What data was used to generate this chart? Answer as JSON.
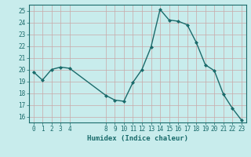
{
  "x": [
    0,
    1,
    2,
    3,
    4,
    8,
    9,
    10,
    11,
    12,
    13,
    14,
    15,
    16,
    17,
    18,
    19,
    20,
    21,
    22,
    23
  ],
  "y": [
    19.8,
    19.1,
    20.0,
    20.2,
    20.1,
    17.8,
    17.4,
    17.3,
    18.9,
    20.0,
    21.9,
    25.1,
    24.2,
    24.1,
    23.8,
    22.3,
    20.4,
    19.9,
    17.9,
    16.7,
    15.7
  ],
  "line_color": "#1a6b6b",
  "marker": "D",
  "marker_size": 2.0,
  "bg_color": "#c8ecec",
  "grid_color": "#c8a8a8",
  "xlabel": "Humidex (Indice chaleur)",
  "ylim": [
    15.5,
    25.5
  ],
  "xlim": [
    -0.5,
    23.5
  ],
  "yticks": [
    16,
    17,
    18,
    19,
    20,
    21,
    22,
    23,
    24,
    25
  ],
  "xticks": [
    0,
    1,
    2,
    3,
    4,
    8,
    9,
    10,
    11,
    12,
    13,
    14,
    15,
    16,
    17,
    18,
    19,
    20,
    21,
    22,
    23
  ],
  "tick_label_color": "#1a6b6b",
  "xlabel_color": "#1a6b6b",
  "tick_fontsize": 5.5,
  "xlabel_fontsize": 6.5,
  "linewidth": 1.0
}
